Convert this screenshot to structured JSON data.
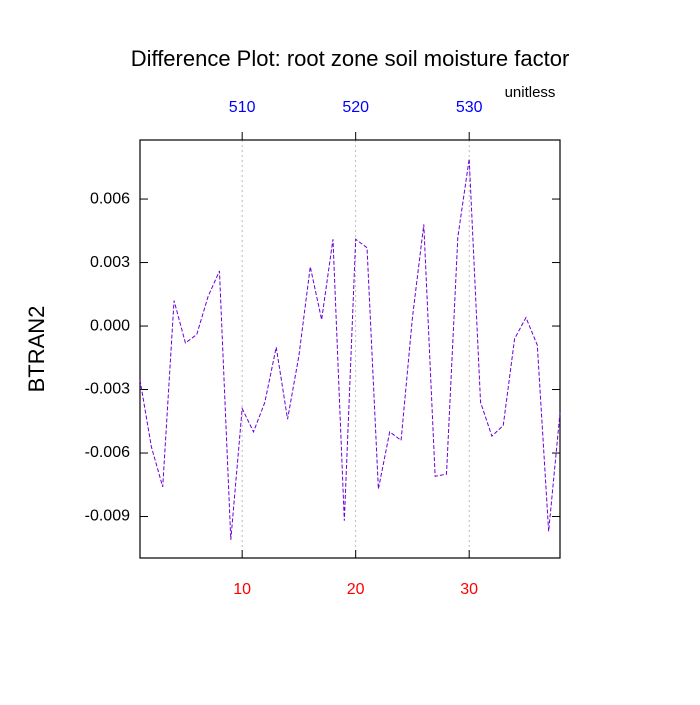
{
  "chart_data": {
    "type": "line",
    "title": "Difference Plot: root zone soil moisture factor",
    "units": "unitless",
    "y_label": "BTRAN2",
    "x": [
      1,
      2,
      3,
      4,
      5,
      6,
      7,
      8,
      9,
      10,
      11,
      12,
      13,
      14,
      15,
      16,
      17,
      18,
      19,
      20,
      21,
      22,
      23,
      24,
      25,
      26,
      27,
      28,
      29,
      30,
      31,
      32,
      33,
      34,
      35,
      36,
      37,
      38
    ],
    "series": [
      {
        "name": "BTRAN2",
        "color": "#6a00d8",
        "values": [
          -0.00255,
          -0.0057,
          -0.0076,
          0.0012,
          -0.0008,
          -0.0004,
          0.0014,
          0.0026,
          -0.0101,
          -0.0039,
          -0.005,
          -0.0036,
          -0.001,
          -0.0044,
          -0.0014,
          0.0028,
          0.0003,
          0.0041,
          -0.0092,
          0.0041,
          0.0037,
          -0.0077,
          -0.005,
          -0.0054,
          0.0004,
          0.0048,
          -0.0071,
          -0.007,
          0.0042,
          0.0079,
          -0.0036,
          -0.0052,
          -0.0047,
          -0.0006,
          0.0004,
          -0.0009,
          -0.0097,
          -0.0041
        ]
      }
    ],
    "xlim": [
      1,
      38
    ],
    "xticks": [
      10,
      20,
      30
    ],
    "xtick_color": "#ff0000",
    "x2lim": [
      501,
      538
    ],
    "x2ticks": [
      510,
      520,
      530
    ],
    "x2tick_color": "#0000ff",
    "ylim": [
      -0.01096,
      0.00879
    ],
    "yticks": [
      -0.009,
      -0.006,
      -0.003,
      {
        "value": 0,
        "label": "0.000"
      },
      0.003,
      0.006
    ],
    "grid": true
  }
}
